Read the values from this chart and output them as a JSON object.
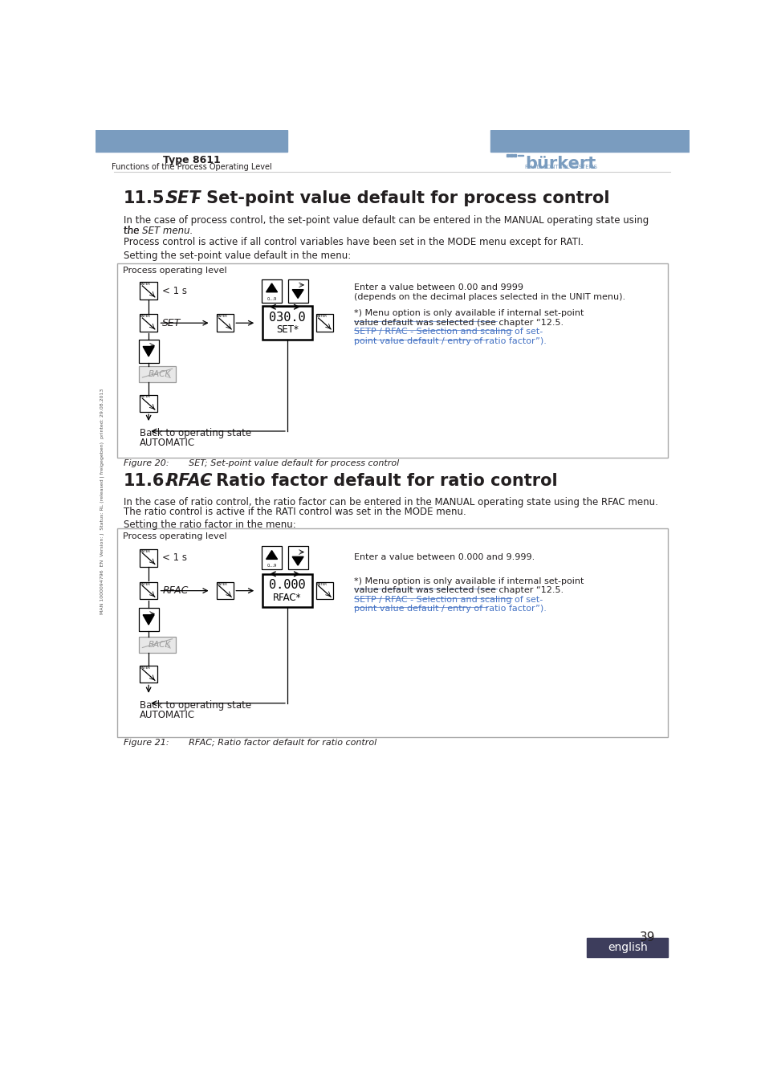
{
  "page_title": "Type 8611",
  "page_subtitle": "Functions of the Process Operating Level",
  "header_blue": "#7a9cbf",
  "section1_num": "11.5.",
  "section1_title_italic": "SET",
  "section1_title_rest": " - Set-point value default for process control",
  "section1_para1a": "In the case of process control, the set-point value default can be entered in the MANUAL operating state using",
  "section1_para1b": "the SET menu.",
  "section1_para2": "Process control is active if all control variables have been set in the MODE menu except for RATI.",
  "section1_para3": "Setting the set-point value default in the menu:",
  "fig1_label": "Process operating level",
  "fig1_enter_text1": "Enter a value between 0.00 and 9999",
  "fig1_enter_text2": "(depends on the decimal places selected in the UNIT menu).",
  "fig1_note1": "*) Menu option is only available if internal set-point",
  "fig1_note2": "value default was selected (see chapter “12.5.",
  "fig1_note3": "SETP / RFAC - Selection and scaling of set-",
  "fig1_note4": "point value default / entry of ratio factor”).",
  "fig1_display_top": "030.0",
  "fig1_display_bot": "SET*",
  "fig1_caption": "Figure 20:       SET; Set-point value default for process control",
  "section2_num": "11.6.",
  "section2_title_italic": "RFAC",
  "section2_title_rest": " - Ratio factor default for ratio control",
  "section2_para1a": "In the case of ratio control, the ratio factor can be entered in the MANUAL operating state using the RFAC menu.",
  "section2_para1b": "The ratio control is active if the RATI control was set in the MODE menu.",
  "section2_para2": "Setting the ratio factor in the menu:",
  "fig2_label": "Process operating level",
  "fig2_enter_text": "Enter a value between 0.000 and 9.999.",
  "fig2_note1": "*) Menu option is only available if internal set-point",
  "fig2_note2": "value default was selected (see chapter “12.5.",
  "fig2_note3": "SETP / RFAC - Selection and scaling of set-",
  "fig2_note4": "point value default / entry of ratio factor”).",
  "fig2_display_top": "0.000",
  "fig2_display_bot": "RFAC*",
  "fig2_caption": "Figure 21:       RFAC; Ratio factor default for ratio control",
  "page_num": "39",
  "footer_text": "english",
  "text_color": "#231f20",
  "box_border": "#aaaaaa",
  "link_color": "#4472c4",
  "sidebar_text": "MAN 1000094796  EN  Version: J  Status: RL (released | freigegeben)  printed: 29.08.2013",
  "burkert_blue": "#7a9cbf",
  "footer_bg": "#3d3d5c"
}
